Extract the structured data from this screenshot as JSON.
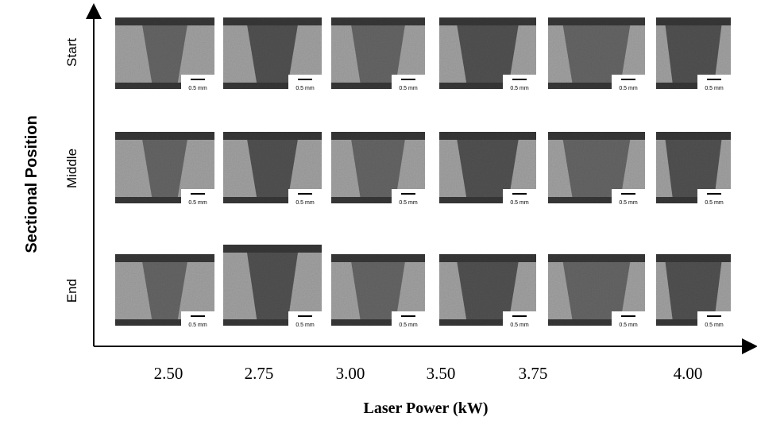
{
  "y_axis_title": "Sectional Position",
  "x_axis_title": "Laser Power (kW)",
  "rows": [
    "Start",
    "Middle",
    "End"
  ],
  "columns": [
    "2.50",
    "2.75",
    "3.00",
    "3.50",
    "3.75",
    "4.00"
  ],
  "scale_bar_label": "0.5 mm"
}
